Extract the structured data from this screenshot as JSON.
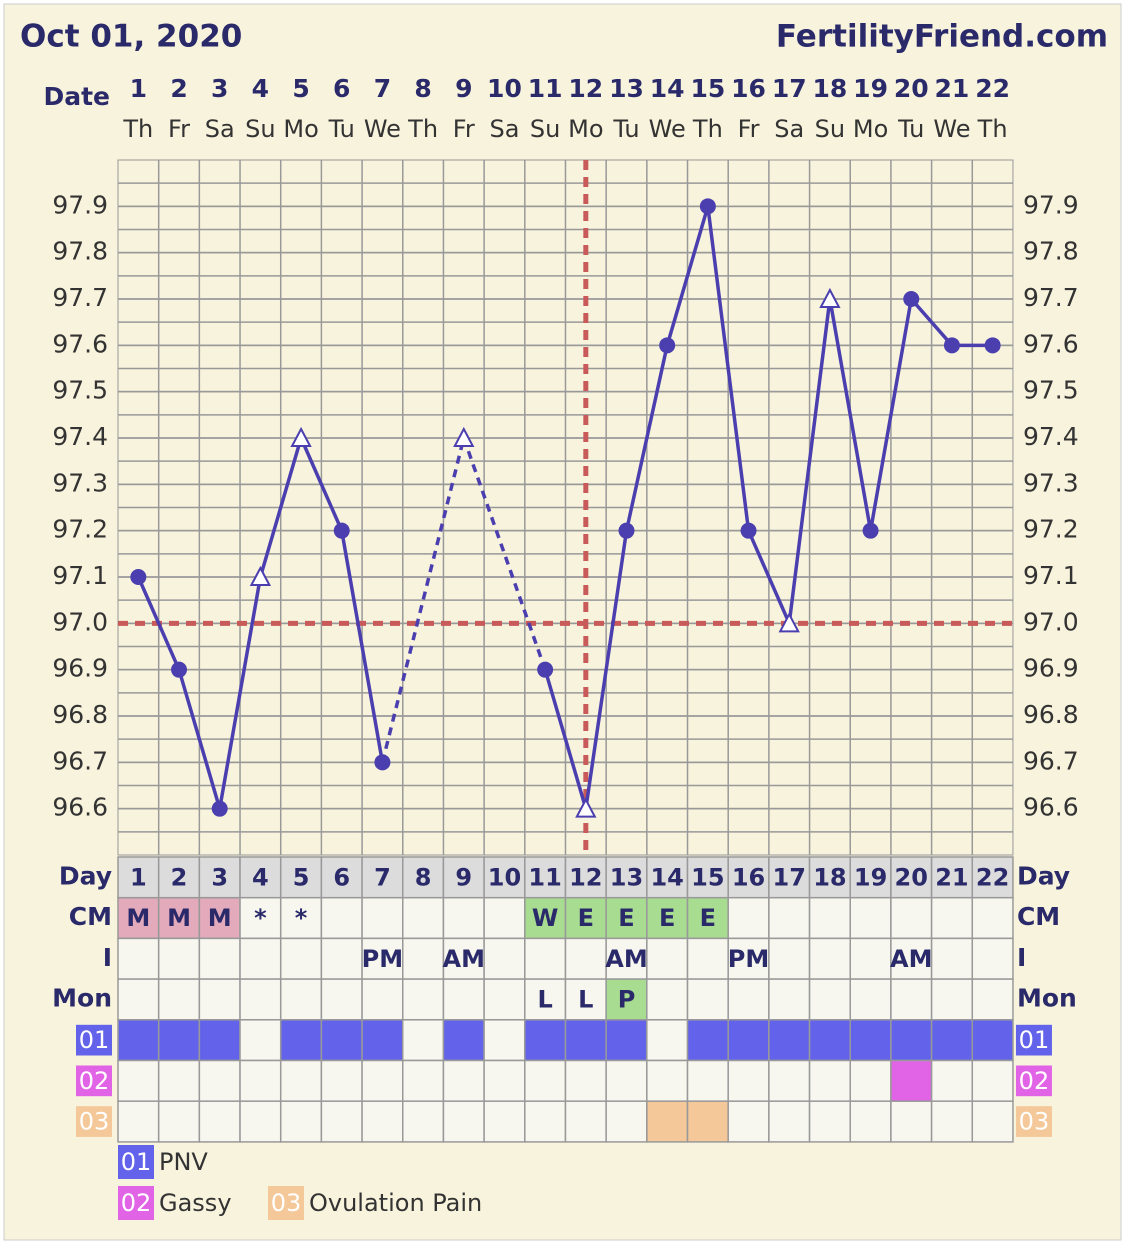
{
  "header": {
    "date": "Oct 01, 2020",
    "site": "FertilityFriend.com"
  },
  "chart_data": {
    "type": "line",
    "x_label": "Date",
    "categories": [
      "1",
      "2",
      "3",
      "4",
      "5",
      "6",
      "7",
      "8",
      "9",
      "10",
      "11",
      "12",
      "13",
      "14",
      "15",
      "16",
      "17",
      "18",
      "19",
      "20",
      "21",
      "22"
    ],
    "weekdays": [
      "Th",
      "Fr",
      "Sa",
      "Su",
      "Mo",
      "Tu",
      "We",
      "Th",
      "Fr",
      "Sa",
      "Su",
      "Mo",
      "Tu",
      "We",
      "Th",
      "Fr",
      "Sa",
      "Su",
      "Mo",
      "Tu",
      "We",
      "Th"
    ],
    "values": [
      97.1,
      96.9,
      96.6,
      97.1,
      97.4,
      97.2,
      96.7,
      null,
      97.4,
      null,
      96.9,
      96.6,
      97.2,
      97.6,
      97.9,
      97.2,
      97.0,
      97.7,
      97.2,
      97.7,
      97.6,
      97.6
    ],
    "markers": [
      "circle",
      "circle",
      "circle",
      "open-triangle",
      "open-triangle",
      "circle",
      "circle",
      null,
      "open-triangle",
      null,
      "circle",
      "open-triangle",
      "circle",
      "circle",
      "circle",
      "circle",
      "open-triangle",
      "open-triangle",
      "circle",
      "circle",
      "circle",
      "circle"
    ],
    "color": "#4b3fb0",
    "ylim": [
      96.5,
      98.0
    ],
    "yticks": [
      96.6,
      96.7,
      96.8,
      96.9,
      {
        "value": 97,
        "label": "97.0"
      },
      97.1,
      97.2,
      97.3,
      97.4,
      97.5,
      97.6,
      97.7,
      97.8,
      97.9
    ],
    "coverline": 97.0,
    "ovulation_day": "12",
    "reference_color": "#c85a5a",
    "grid": true
  },
  "table": {
    "rows": [
      {
        "label": "Day",
        "cells": [
          1,
          2,
          3,
          4,
          5,
          6,
          7,
          8,
          9,
          10,
          11,
          12,
          13,
          14,
          15,
          16,
          17,
          18,
          19,
          20,
          21,
          22
        ]
      },
      {
        "label": "CM",
        "cells": [
          "M",
          "M",
          "M",
          "*",
          "*",
          null,
          null,
          null,
          null,
          null,
          "W",
          "E",
          "E",
          "E",
          "E",
          null,
          null,
          null,
          null,
          null,
          null,
          null
        ]
      },
      {
        "label": "I",
        "cells": [
          null,
          null,
          null,
          null,
          null,
          null,
          "PM",
          null,
          "AM",
          null,
          null,
          null,
          "AM",
          null,
          null,
          "PM",
          null,
          null,
          null,
          "AM",
          null,
          null
        ]
      },
      {
        "label": "Mon",
        "cells": [
          null,
          null,
          null,
          null,
          null,
          null,
          null,
          null,
          null,
          null,
          "L",
          "L",
          "P",
          null,
          null,
          null,
          null,
          null,
          null,
          null,
          null,
          null
        ]
      }
    ],
    "cell_colors": {
      "M": "#e2aabb",
      "W": "#a8dc90",
      "E": "#a8dc90",
      "P": "#a8dc90"
    },
    "symptoms": [
      {
        "code": "01",
        "name": "PNV",
        "color": "#6262ea",
        "days": [
          true,
          true,
          true,
          false,
          true,
          true,
          true,
          false,
          true,
          false,
          true,
          true,
          true,
          false,
          true,
          true,
          true,
          true,
          true,
          true,
          true,
          true
        ]
      },
      {
        "code": "02",
        "name": "Gassy",
        "color": "#e264e6",
        "days": [
          false,
          false,
          false,
          false,
          false,
          false,
          false,
          false,
          false,
          false,
          false,
          false,
          false,
          false,
          false,
          false,
          false,
          false,
          false,
          true,
          false,
          false
        ]
      },
      {
        "code": "03",
        "name": "Ovulation Pain",
        "color": "#f4c898",
        "days": [
          false,
          false,
          false,
          false,
          false,
          false,
          false,
          false,
          false,
          false,
          false,
          false,
          false,
          true,
          true,
          false,
          false,
          false,
          false,
          false,
          false,
          false
        ]
      }
    ]
  }
}
